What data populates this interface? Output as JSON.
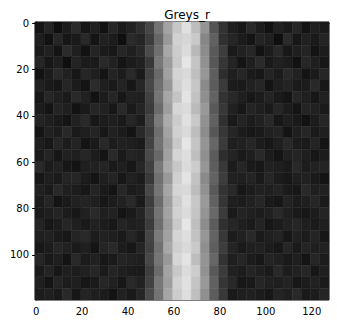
{
  "chart_data": {
    "type": "heatmap",
    "title": "Greys_r",
    "xlim": [
      -0.5,
      127.5
    ],
    "ylim": [
      119.5,
      -0.5
    ],
    "xticks": [
      0,
      20,
      40,
      60,
      80,
      100,
      120
    ],
    "yticks": [
      0,
      20,
      40,
      60,
      80,
      100
    ],
    "clim": [
      0,
      100
    ],
    "x_edges": [
      -0.5,
      3.5,
      7.5,
      11.5,
      15.5,
      19.5,
      23.5,
      27.5,
      31.5,
      35.5,
      39.5,
      43.5,
      47.5,
      51.5,
      55.5,
      59.5,
      63.5,
      67.5,
      71.5,
      75.5,
      79.5,
      83.5,
      87.5,
      91.5,
      95.5,
      99.5,
      103.5,
      107.5,
      111.5,
      115.5,
      119.5,
      123.5,
      127.5
    ],
    "y_edges": [
      -0.5,
      4.5,
      9.5,
      14.5,
      19.5,
      24.5,
      29.5,
      34.5,
      39.5,
      44.5,
      49.5,
      54.5,
      59.5,
      64.5,
      69.5,
      74.5,
      79.5,
      84.5,
      89.5,
      94.5,
      99.5,
      104.5,
      109.5,
      114.5,
      119.5
    ],
    "cells": [
      [
        8,
        14,
        6,
        11,
        17,
        9,
        12,
        7,
        15,
        10,
        13,
        18,
        27,
        45,
        64,
        78,
        88,
        74,
        58,
        33,
        20,
        12,
        9,
        16,
        11,
        7,
        13,
        10,
        15,
        8,
        12,
        10
      ],
      [
        12,
        7,
        15,
        9,
        10,
        16,
        8,
        13,
        11,
        6,
        17,
        14,
        24,
        40,
        60,
        82,
        84,
        79,
        53,
        38,
        19,
        15,
        11,
        8,
        14,
        12,
        6,
        17,
        9,
        13,
        10,
        14
      ],
      [
        10,
        13,
        8,
        17,
        12,
        7,
        14,
        10,
        9,
        15,
        12,
        16,
        29,
        43,
        66,
        80,
        86,
        72,
        55,
        35,
        24,
        10,
        13,
        15,
        7,
        11,
        16,
        9,
        12,
        14,
        8,
        11
      ],
      [
        15,
        9,
        12,
        6,
        14,
        11,
        10,
        16,
        13,
        8,
        11,
        13,
        22,
        47,
        61,
        79,
        90,
        77,
        57,
        34,
        21,
        14,
        8,
        12,
        17,
        10,
        13,
        11,
        7,
        15,
        12,
        9
      ],
      [
        7,
        11,
        16,
        13,
        9,
        15,
        12,
        8,
        14,
        11,
        16,
        10,
        26,
        41,
        63,
        83,
        85,
        75,
        59,
        37,
        18,
        12,
        15,
        10,
        9,
        14,
        11,
        16,
        13,
        8,
        10,
        15
      ],
      [
        13,
        10,
        9,
        15,
        11,
        8,
        17,
        12,
        10,
        14,
        9,
        15,
        28,
        44,
        59,
        81,
        87,
        78,
        54,
        36,
        23,
        11,
        10,
        13,
        15,
        8,
        12,
        14,
        10,
        11,
        16,
        9
      ],
      [
        9,
        15,
        12,
        10,
        16,
        13,
        7,
        11,
        15,
        9,
        13,
        12,
        25,
        46,
        65,
        77,
        89,
        76,
        56,
        39,
        20,
        16,
        12,
        9,
        11,
        14,
        10,
        8,
        15,
        12,
        9,
        13
      ],
      [
        11,
        8,
        14,
        12,
        7,
        10,
        15,
        13,
        9,
        16,
        10,
        14,
        23,
        42,
        62,
        84,
        86,
        73,
        60,
        35,
        22,
        13,
        9,
        14,
        12,
        10,
        15,
        11,
        8,
        14,
        13,
        10
      ],
      [
        14,
        12,
        10,
        8,
        13,
        16,
        9,
        11,
        12,
        10,
        15,
        11,
        27,
        48,
        67,
        80,
        88,
        79,
        57,
        38,
        19,
        10,
        14,
        11,
        13,
        16,
        9,
        12,
        10,
        7,
        11,
        15
      ],
      [
        8,
        13,
        11,
        16,
        10,
        12,
        14,
        9,
        13,
        11,
        8,
        16,
        24,
        43,
        64,
        82,
        85,
        74,
        55,
        34,
        21,
        15,
        11,
        9,
        10,
        13,
        14,
        8,
        12,
        15,
        10,
        12
      ],
      [
        12,
        9,
        15,
        11,
        14,
        8,
        10,
        16,
        11,
        13,
        12,
        10,
        26,
        45,
        61,
        79,
        90,
        77,
        58,
        40,
        23,
        12,
        13,
        15,
        11,
        9,
        12,
        16,
        11,
        10,
        14,
        8
      ],
      [
        10,
        14,
        9,
        13,
        12,
        15,
        11,
        8,
        16,
        10,
        14,
        13,
        29,
        41,
        63,
        83,
        87,
        75,
        56,
        36,
        18,
        14,
        10,
        12,
        16,
        11,
        8,
        13,
        14,
        12,
        9,
        11
      ],
      [
        16,
        11,
        13,
        9,
        8,
        12,
        13,
        14,
        10,
        12,
        9,
        15,
        25,
        47,
        66,
        78,
        86,
        80,
        59,
        37,
        22,
        11,
        15,
        10,
        9,
        13,
        12,
        10,
        16,
        11,
        13,
        14
      ],
      [
        9,
        12,
        10,
        14,
        15,
        11,
        8,
        12,
        14,
        9,
        13,
        11,
        22,
        44,
        60,
        81,
        89,
        76,
        54,
        39,
        24,
        13,
        12,
        14,
        10,
        15,
        11,
        9,
        12,
        13,
        10,
        8
      ],
      [
        13,
        10,
        16,
        12,
        11,
        9,
        14,
        10,
        8,
        15,
        11,
        12,
        28,
        46,
        65,
        84,
        85,
        74,
        57,
        35,
        20,
        16,
        9,
        11,
        13,
        12,
        14,
        10,
        9,
        16,
        12,
        13
      ],
      [
        11,
        15,
        8,
        10,
        13,
        14,
        12,
        9,
        11,
        13,
        16,
        10,
        24,
        42,
        62,
        80,
        88,
        78,
        60,
        38,
        21,
        12,
        11,
        13,
        15,
        10,
        9,
        14,
        11,
        12,
        15,
        10
      ],
      [
        10,
        12,
        14,
        11,
        9,
        13,
        16,
        12,
        13,
        8,
        10,
        14,
        26,
        45,
        64,
        82,
        86,
        77,
        58,
        41,
        23,
        10,
        14,
        12,
        11,
        13,
        16,
        12,
        10,
        9,
        11,
        14
      ],
      [
        14,
        9,
        11,
        15,
        12,
        10,
        13,
        11,
        9,
        14,
        12,
        13,
        23,
        43,
        61,
        79,
        90,
        75,
        55,
        36,
        19,
        15,
        12,
        10,
        14,
        9,
        11,
        13,
        15,
        12,
        10,
        12
      ],
      [
        12,
        13,
        10,
        9,
        14,
        16,
        11,
        13,
        12,
        10,
        15,
        11,
        27,
        48,
        63,
        83,
        87,
        76,
        59,
        39,
        22,
        11,
        13,
        16,
        10,
        12,
        14,
        9,
        13,
        11,
        14,
        9
      ],
      [
        9,
        11,
        15,
        13,
        10,
        12,
        8,
        14,
        16,
        11,
        9,
        14,
        25,
        44,
        66,
        81,
        85,
        79,
        56,
        37,
        24,
        14,
        10,
        12,
        13,
        11,
        9,
        15,
        10,
        14,
        12,
        13
      ],
      [
        15,
        10,
        12,
        8,
        16,
        11,
        13,
        9,
        10,
        14,
        13,
        12,
        28,
        46,
        60,
        84,
        89,
        74,
        58,
        40,
        20,
        12,
        15,
        11,
        9,
        14,
        13,
        10,
        12,
        8,
        15,
        11
      ],
      [
        10,
        14,
        9,
        12,
        11,
        13,
        15,
        10,
        14,
        12,
        11,
        10,
        24,
        42,
        64,
        78,
        86,
        80,
        57,
        35,
        23,
        13,
        11,
        14,
        12,
        10,
        16,
        11,
        13,
        15,
        9,
        12
      ],
      [
        13,
        8,
        14,
        11,
        12,
        9,
        10,
        15,
        13,
        9,
        16,
        13,
        26,
        47,
        62,
        82,
        88,
        77,
        60,
        38,
        21,
        16,
        9,
        10,
        15,
        13,
        12,
        14,
        9,
        11,
        13,
        10
      ],
      [
        11,
        12,
        10,
        16,
        9,
        14,
        12,
        11,
        8,
        13,
        10,
        15,
        29,
        45,
        65,
        80,
        87,
        75,
        56,
        36,
        22,
        10,
        12,
        13,
        11,
        9,
        14,
        12,
        16,
        10,
        11,
        14
      ]
    ]
  }
}
